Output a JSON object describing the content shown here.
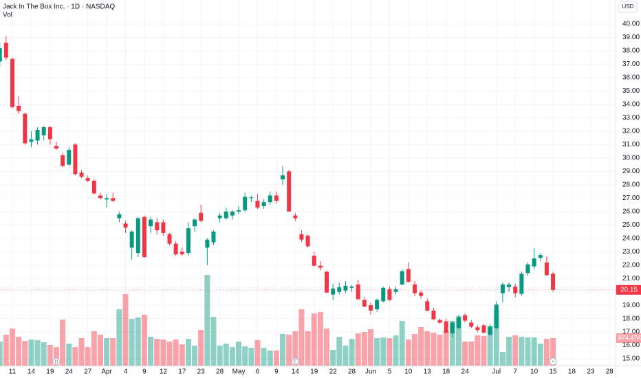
{
  "header": {
    "title": "Jack In The Box Inc. · 1D · NASDAQ",
    "volume_title": "Vol",
    "currency": "USD"
  },
  "chart_data": {
    "type": "candlestick",
    "categories": [
      null,
      null,
      "11",
      null,
      null,
      "14",
      null,
      null,
      "19",
      null,
      null,
      "24",
      null,
      null,
      "27",
      null,
      null,
      "Apr",
      null,
      null,
      "4",
      null,
      null,
      "9",
      null,
      null,
      "12",
      null,
      null,
      "17",
      null,
      null,
      "23",
      null,
      null,
      "28",
      null,
      null,
      "May",
      null,
      null,
      "6",
      null,
      null,
      "9",
      null,
      null,
      "14",
      null,
      null,
      "19",
      null,
      null,
      "22",
      null,
      null,
      "28",
      null,
      null,
      "Jun",
      null,
      null,
      "5",
      null,
      null,
      "10",
      null,
      null,
      "13",
      null,
      null,
      "18",
      null,
      null,
      "24",
      null,
      null,
      null,
      null,
      "Jul",
      null,
      null,
      "7",
      null,
      null,
      "10",
      null,
      null,
      "15",
      null,
      null,
      "18",
      null,
      null,
      "23",
      null,
      null,
      "28"
    ],
    "open": [
      37.2,
      38.6,
      37.4,
      33.9,
      33.3,
      31.2,
      31.3,
      31.7,
      32.3,
      30.9,
      30.2,
      29.5,
      31.0,
      28.9,
      28.5,
      28.3,
      27.2,
      26.9,
      27.0,
      25.5,
      25.1,
      23.3,
      22.9,
      25.6,
      24.9,
      25.2,
      25.2,
      24.3,
      23.6,
      23.0,
      22.9,
      24.9,
      25.9,
      23.3,
      23.7,
      25.5,
      25.5,
      25.7,
      26.0,
      26.1,
      27.0,
      26.8,
      26.4,
      26.7,
      27.2,
      28.4,
      29.0,
      25.7,
      24.3,
      24.2,
      22.7,
      21.95,
      21.5,
      19.8,
      20.0,
      20.1,
      20.3,
      20.55,
      19.4,
      19.0,
      18.7,
      19.3,
      20.2,
      20.0,
      20.55,
      21.7,
      20.55,
      19.95,
      19.3,
      18.6,
      17.9,
      17.8,
      16.9,
      17.3,
      18.25,
      17.7,
      17.35,
      17.5,
      16.8,
      17.3,
      19.9,
      20.35,
      20.4,
      19.85,
      21.4,
      21.9,
      22.55,
      22.2,
      21.35,
      null,
      null,
      null,
      null,
      null,
      null,
      null,
      null,
      null
    ],
    "high": [
      38.6,
      39.1,
      37.5,
      34.6,
      33.4,
      32.0,
      32.3,
      32.4,
      32.4,
      31.2,
      30.4,
      30.8,
      31.1,
      29.1,
      28.7,
      28.4,
      27.4,
      27.3,
      27.4,
      26.0,
      25.3,
      24.6,
      25.6,
      25.7,
      25.6,
      25.5,
      25.4,
      24.4,
      23.8,
      23.3,
      25.2,
      25.5,
      26.5,
      24.0,
      24.6,
      25.9,
      26.3,
      26.1,
      26.4,
      27.4,
      27.2,
      27.3,
      26.9,
      27.5,
      27.5,
      29.4,
      29.1,
      25.9,
      24.6,
      24.3,
      23.0,
      22.3,
      21.6,
      20.6,
      20.7,
      20.8,
      20.5,
      20.9,
      19.6,
      19.2,
      19.5,
      20.4,
      20.4,
      20.4,
      21.7,
      22.2,
      20.8,
      20.1,
      19.5,
      18.8,
      18.0,
      18.0,
      17.8,
      18.3,
      18.4,
      17.9,
      17.5,
      17.6,
      17.6,
      19.3,
      20.7,
      20.7,
      20.6,
      21.5,
      22.2,
      23.25,
      22.9,
      22.65,
      21.5,
      null,
      null,
      null,
      null,
      null,
      null,
      null,
      null,
      null
    ],
    "low": [
      36.8,
      37.3,
      33.7,
      33.3,
      31.0,
      30.8,
      31.0,
      31.3,
      31.0,
      30.6,
      29.3,
      29.4,
      28.7,
      28.5,
      28.2,
      27.3,
      26.9,
      26.3,
      26.7,
      25.2,
      24.4,
      22.4,
      22.6,
      22.5,
      24.4,
      24.3,
      24.2,
      23.5,
      22.7,
      22.7,
      22.7,
      24.5,
      25.2,
      22.0,
      23.5,
      25.2,
      25.4,
      25.4,
      25.8,
      26.0,
      26.7,
      26.2,
      26.2,
      26.5,
      26.6,
      28.0,
      26.0,
      25.3,
      23.7,
      23.3,
      21.9,
      21.6,
      19.9,
      19.4,
      19.8,
      19.9,
      20.0,
      19.4,
      18.85,
      18.3,
      18.5,
      19.2,
      19.3,
      19.8,
      20.5,
      20.7,
      19.7,
      19.5,
      18.55,
      17.9,
      17.6,
      16.9,
      16.6,
      17.2,
      17.7,
      17.3,
      17.0,
      16.9,
      16.7,
      17.2,
      19.2,
      20.0,
      19.6,
      19.7,
      21.2,
      21.7,
      22.3,
      21.2,
      20.0,
      null,
      null,
      null,
      null,
      null,
      null,
      null,
      null,
      null
    ],
    "close": [
      38.2,
      37.5,
      33.8,
      33.5,
      31.1,
      31.4,
      32.1,
      32.3,
      31.4,
      30.7,
      29.4,
      30.6,
      28.8,
      28.6,
      28.3,
      27.35,
      27.0,
      27.0,
      26.8,
      25.8,
      24.8,
      24.5,
      25.5,
      22.6,
      25.4,
      24.6,
      24.4,
      23.6,
      22.8,
      22.8,
      24.75,
      25.4,
      25.3,
      23.9,
      24.5,
      25.7,
      26.0,
      26.0,
      26.1,
      27.1,
      27.05,
      26.3,
      26.7,
      27.2,
      26.8,
      28.7,
      26.0,
      25.5,
      23.9,
      23.4,
      21.95,
      21.8,
      19.95,
      20.25,
      20.35,
      20.45,
      20.4,
      19.45,
      18.9,
      18.6,
      19.4,
      20.3,
      19.4,
      20.2,
      21.55,
      20.75,
      19.9,
      19.7,
      18.6,
      17.95,
      17.7,
      16.95,
      17.7,
      18.1,
      17.85,
      17.4,
      17.15,
      16.95,
      17.4,
      19.05,
      20.55,
      20.55,
      19.9,
      21.35,
      22.05,
      22.5,
      22.75,
      21.25,
      20.15,
      null,
      null,
      null,
      null,
      null,
      null,
      null,
      null,
      null
    ],
    "volume": [
      765000,
      984000,
      1180000,
      918000,
      787000,
      831000,
      809000,
      743000,
      656000,
      590000,
      1465000,
      700000,
      590000,
      874000,
      590000,
      1093000,
      984000,
      874000,
      874000,
      1793000,
      2273000,
      1486000,
      1530000,
      1618000,
      918000,
      853000,
      831000,
      765000,
      831000,
      678000,
      853000,
      634000,
      1137000,
      2886000,
      1552000,
      634000,
      700000,
      590000,
      765000,
      612000,
      568000,
      809000,
      568000,
      481000,
      481000,
      1006000,
      984000,
      1093000,
      1793000,
      1093000,
      1661000,
      1705000,
      1180000,
      503000,
      918000,
      634000,
      853000,
      1027000,
      1071000,
      1159000,
      874000,
      896000,
      874000,
      962000,
      1421000,
      831000,
      1006000,
      1224000,
      1093000,
      1049000,
      984000,
      1115000,
      1421000,
      1574000,
      765000,
      765000,
      962000,
      940000,
      1268000,
      1771000,
      437000,
      918000,
      962000,
      918000,
      896000,
      896000,
      700000,
      853000,
      874470,
      null,
      null,
      null,
      null,
      null,
      null,
      null,
      null,
      null
    ],
    "last_volume_label": "874.47K",
    "up_color": "#089981",
    "down_color": "#f23645",
    "ylim": [
      14.49,
      41.8
    ],
    "yticks": [
      {
        "value": 15,
        "label": "15.00"
      },
      {
        "value": 16,
        "label": "16.00"
      },
      {
        "value": 17,
        "label": "17.00"
      },
      {
        "value": 18,
        "label": "18.00"
      },
      {
        "value": 19,
        "label": "19.00"
      },
      {
        "value": 20,
        "label": "20.00"
      },
      {
        "value": 21,
        "label": "21.00"
      },
      {
        "value": 22,
        "label": "22.00"
      },
      {
        "value": 23,
        "label": "23.00"
      },
      {
        "value": 24,
        "label": "24.00"
      },
      {
        "value": 25,
        "label": "25.00"
      },
      {
        "value": 26,
        "label": "26.00"
      },
      {
        "value": 27,
        "label": "27.00"
      },
      {
        "value": 28,
        "label": "28.00"
      },
      {
        "value": 29,
        "label": "29.00"
      },
      {
        "value": 30,
        "label": "30.00"
      },
      {
        "value": 31,
        "label": "31.00"
      },
      {
        "value": 32,
        "label": "32.00"
      },
      {
        "value": 33,
        "label": "33.00"
      },
      {
        "value": 34,
        "label": "34.00"
      },
      {
        "value": 35,
        "label": "35.00"
      },
      {
        "value": 36,
        "label": "36.00"
      },
      {
        "value": 37,
        "label": "37.00"
      },
      {
        "value": 38,
        "label": "38.00"
      },
      {
        "value": 39,
        "label": "39.00"
      },
      {
        "value": 40,
        "label": "40.00"
      }
    ],
    "grid": true,
    "events": [
      "D",
      "E"
    ]
  }
}
